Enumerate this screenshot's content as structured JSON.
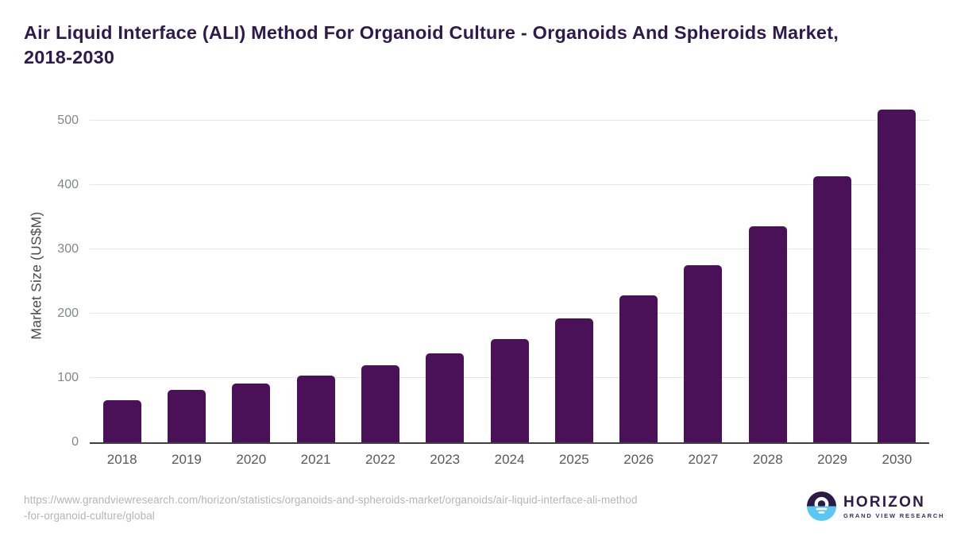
{
  "title": "Air Liquid Interface (ALI) Method For Organoid Culture - Organoids And Spheroids Market,\n2018-2030",
  "chart_data": {
    "type": "bar",
    "title": "Air Liquid Interface (ALI) Method For Organoid Culture - Organoids And Spheroids Market, 2018-2030",
    "categories": [
      "2018",
      "2019",
      "2020",
      "2021",
      "2022",
      "2023",
      "2024",
      "2025",
      "2026",
      "2027",
      "2028",
      "2029",
      "2030"
    ],
    "values": [
      66,
      81,
      91,
      104,
      120,
      138,
      161,
      192,
      228,
      275,
      336,
      413,
      517
    ],
    "xlabel": "",
    "ylabel": "Market Size (US$M)",
    "ylim": [
      0,
      520
    ],
    "yticks": [
      0,
      100,
      200,
      300,
      400,
      500
    ],
    "grid": "horizontal gridlines only",
    "legend": "none",
    "bar_color": "#4a1158"
  },
  "colors": {
    "bar": "#4a1158",
    "title_text": "#2e1a4d",
    "axis_line": "#3f4041",
    "gridline": "#e7e7e8",
    "tick_text": "#84868a",
    "x_label_text": "#58595b",
    "source_text": "#b4b5b7",
    "logo_dark_purple": "#2d1b45",
    "logo_light_blue": "#5ac6f2"
  },
  "footer": {
    "source_url": "https://www.grandviewresearch.com/horizon/statistics/organoids-and-spheroids-market/organoids/air-liquid-interface-ali-method\n-for-organoid-culture/global",
    "logo_name": "HORIZON",
    "logo_subtitle": "GRAND VIEW RESEARCH"
  }
}
